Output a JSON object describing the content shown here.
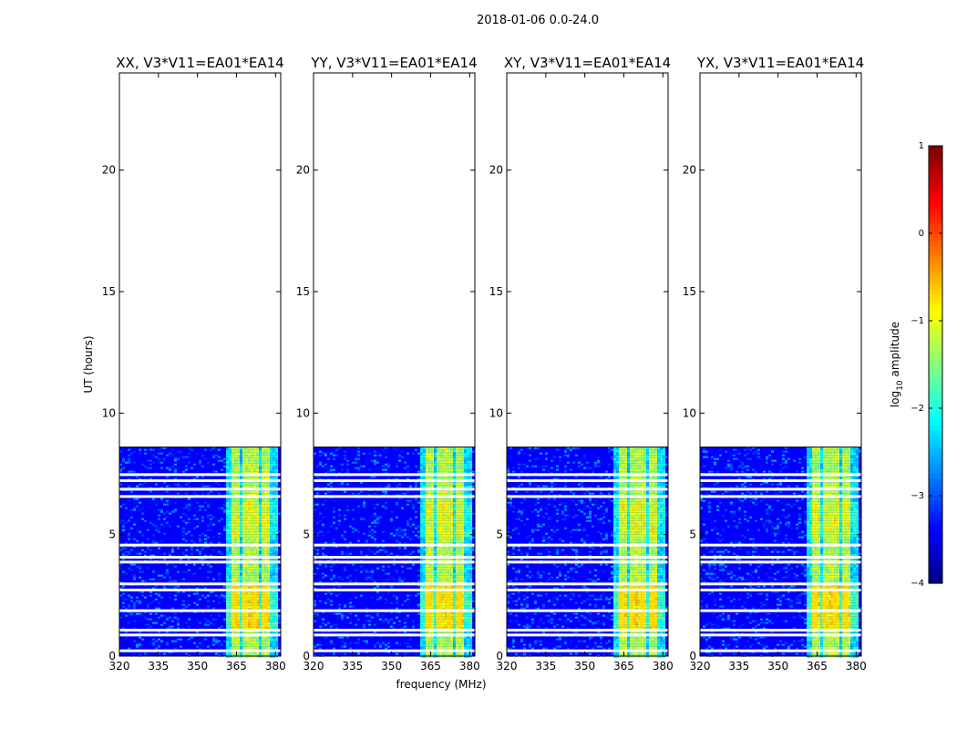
{
  "chart_data": {
    "type": "heatmap",
    "suptitle": "2018-01-06 0.0-24.0",
    "xlabel": "frequency (MHz)",
    "ylabel": "UT (hours)",
    "xlim": [
      320,
      382
    ],
    "ylim": [
      0,
      24
    ],
    "xticks": [
      320,
      335,
      350,
      365,
      380
    ],
    "yticks": [
      0,
      5,
      10,
      15,
      20
    ],
    "data_t_range": [
      0.0,
      8.6
    ],
    "gap_hours": [
      0.2,
      0.85,
      1.05,
      1.85,
      2.7,
      2.95,
      3.85,
      4.05,
      4.55,
      6.55,
      6.85,
      7.2,
      7.45
    ],
    "panels": [
      {
        "title": "XX, V3*V11=EA01*EA14",
        "rfi_band_mhz": [
          361,
          380
        ],
        "hot_channels_mhz": [
          364,
          368,
          372,
          376
        ]
      },
      {
        "title": "YY, V3*V11=EA01*EA14",
        "rfi_band_mhz": [
          361,
          380
        ],
        "hot_channels_mhz": [
          364,
          368,
          372,
          376
        ]
      },
      {
        "title": "XY, V3*V11=EA01*EA14",
        "rfi_band_mhz": [
          361,
          380
        ],
        "hot_channels_mhz": [
          364,
          368,
          372,
          376
        ]
      },
      {
        "title": "YX, V3*V11=EA01*EA14",
        "rfi_band_mhz": [
          361,
          380
        ],
        "hot_channels_mhz": [
          364,
          368,
          372,
          376
        ]
      }
    ],
    "colorbar": {
      "label": "log10 amplitude",
      "label_main": "log",
      "label_sub": "10",
      "label_rest": " amplitude",
      "range": [
        -4,
        1
      ],
      "ticks": [
        1,
        0,
        -1,
        -2,
        -3,
        -4
      ],
      "colormap": "jet"
    }
  }
}
